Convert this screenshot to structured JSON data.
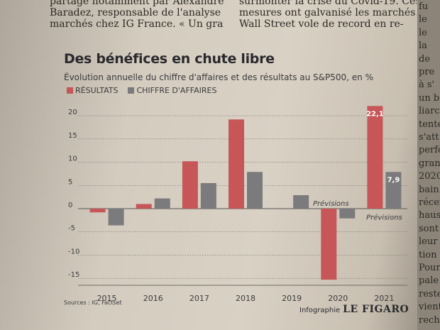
{
  "newspaper": {
    "column1_lines": [
      "partage notamment par Alexandre",
      "Baradez, responsable de l'analyse",
      "marchés chez IG France. « Un grand"
    ],
    "column2_lines": [
      "surmonter la crise du Covid-19. Ces",
      "mesures ont galvanisé les marchés.",
      "Wall Street vole de record en re-"
    ],
    "right_column_fragments": [
      "fu",
      "le",
      "le",
      "la",
      "de",
      "pre",
      "à s'",
      "un b",
      "liarc",
      "tente",
      "s'att",
      "perfo",
      "gran",
      "2020",
      "bain.",
      "récen",
      "hauss",
      "sont",
      "leur",
      "tion",
      "Pour",
      "pale",
      "reste",
      "vient",
      "rechu"
    ]
  },
  "chart": {
    "title": "Des bénéfices en chute libre",
    "subtitle": "Évolution annuelle du chiffre d'affaires et des résultats au S&P500, en %",
    "source": "Sources : IG, Factset",
    "credit_prefix": "Infographie",
    "credit_brand": "LE FIGARO",
    "colors": {
      "resultats": "#c75658",
      "chiffre_affaires": "#7b7a7c",
      "text": "#3a3a3e",
      "grid": "#6f6c68",
      "label_text": "#ffffff"
    }
  },
  "chart_data": {
    "type": "bar",
    "categories": [
      "2015",
      "2016",
      "2017",
      "2018",
      "2019",
      "2020",
      "2021"
    ],
    "series": [
      {
        "name": "RÉSULTATS",
        "values": [
          -0.8,
          1.0,
          10.2,
          19.2,
          0.0,
          -15.3,
          22.1
        ]
      },
      {
        "name": "CHIFFRE D'AFFAIRES",
        "values": [
          -3.6,
          2.2,
          5.5,
          7.9,
          2.9,
          -2.1,
          7.9
        ]
      }
    ],
    "yticks": [
      20,
      15,
      10,
      5,
      0,
      -5,
      -10,
      -15
    ],
    "ylim": [
      -16.5,
      22
    ],
    "data_labels": [
      {
        "series": 0,
        "index": 6,
        "text": "22,1"
      },
      {
        "series": 1,
        "index": 6,
        "text": "7,9"
      }
    ],
    "annotations": [
      {
        "text": "Prévisions",
        "index": 5
      },
      {
        "text": "Prévisions",
        "index": 6
      }
    ],
    "grid": true
  }
}
